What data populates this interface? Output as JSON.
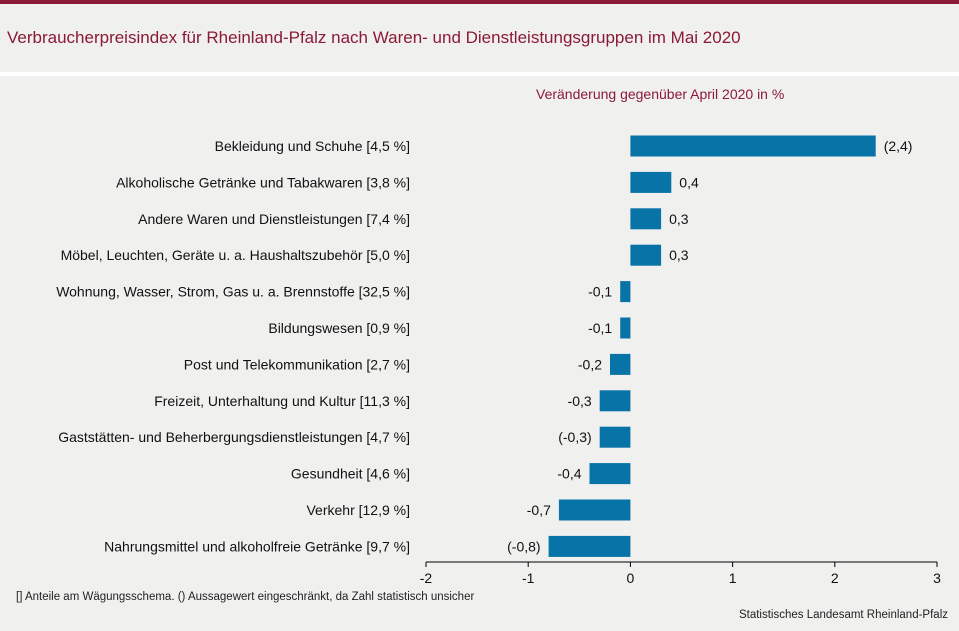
{
  "header": {
    "title": "Verbraucherpreisindex für Rheinland-Pfalz nach Waren- und Dienstleistungsgruppen im Mai 2020",
    "subtitle": "Veränderung gegenüber April 2020 in %"
  },
  "footer": {
    "note": "[] Anteile am Wägungsschema. () Aussagewert eingeschränkt, da Zahl statistisch unsicher",
    "source": "Statistisches Landesamt Rheinland-Pfalz"
  },
  "colors": {
    "bar": "#0873a6",
    "title": "#8b1a35",
    "background": "#f0f0ef"
  },
  "chart_data": {
    "type": "bar",
    "orientation": "horizontal",
    "title": "Verbraucherpreisindex für Rheinland-Pfalz nach Waren- und Dienstleistungsgruppen im Mai 2020",
    "xlabel": "Veränderung gegenüber April 2020 in %",
    "ylabel": "",
    "xlim": [
      -2,
      3
    ],
    "xticks": [
      -2,
      -1,
      0,
      1,
      2,
      3
    ],
    "tick_labels": [
      "-2",
      "-1",
      "0",
      "1",
      "2",
      "3"
    ],
    "grid": false,
    "categories": [
      "Bekleidung und Schuhe [4,5 %]",
      "Alkoholische Getränke und Tabakwaren [3,8 %]",
      "Andere Waren und Dienstleistungen [7,4 %]",
      "Möbel, Leuchten, Geräte u. a. Haushaltszubehör [5,0 %]",
      "Wohnung, Wasser, Strom, Gas u. a. Brennstoffe [32,5 %]",
      "Bildungswesen [0,9 %]",
      "Post und Telekommunikation [2,7 %]",
      "Freizeit, Unterhaltung und Kultur [11,3 %]",
      "Gaststätten- und Beherbergungsdienstleistungen [4,7 %]",
      "Gesundheit [4,6 %]",
      "Verkehr [12,9 %]",
      "Nahrungsmittel und alkoholfreie Getränke [9,7 %]"
    ],
    "values": [
      2.4,
      0.4,
      0.3,
      0.3,
      -0.1,
      -0.1,
      -0.2,
      -0.3,
      -0.3,
      -0.4,
      -0.7,
      -0.8
    ],
    "data_labels": [
      "(2,4)",
      "0,4",
      "0,3",
      "0,3",
      "-0,1",
      "-0,1",
      "-0,2",
      "-0,3",
      "(-0,3)",
      "-0,4",
      "-0,7",
      "(-0,8)"
    ]
  }
}
